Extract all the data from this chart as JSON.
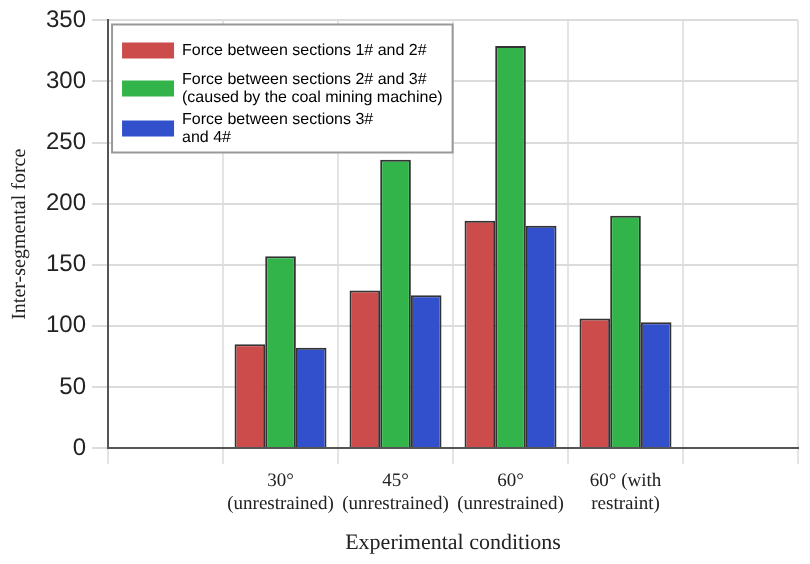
{
  "chart_data": {
    "type": "bar",
    "xlabel": "Experimental conditions",
    "ylabel": "Inter-segmental force",
    "categories": [
      "30°\n(unrestrained)",
      "45°\n(unrestrained)",
      "60°\n(unrestrained)",
      "60° (with\nrestraint)"
    ],
    "series": [
      {
        "name": "Force between sections 1# and 2#",
        "color": "#cc4c4c",
        "values": [
          85,
          129,
          186,
          106
        ]
      },
      {
        "name": "Force between sections 2# and 3#\n(caused by the coal mining machine)",
        "color": "#33b44a",
        "values": [
          157,
          236,
          329,
          190
        ]
      },
      {
        "name": "Force between sections 3#\nand 4#",
        "color": "#3350cc",
        "values": [
          82,
          125,
          182,
          103
        ]
      }
    ],
    "ylim": [
      0,
      350
    ],
    "yticks": [
      0,
      50,
      100,
      150,
      200,
      250,
      300,
      350
    ],
    "grid": true,
    "legend": "top left"
  }
}
